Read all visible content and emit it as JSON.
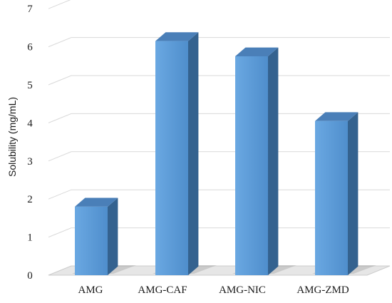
{
  "chart_data": {
    "type": "bar",
    "style": "3d-column",
    "categories": [
      "AMG",
      "AMG-CAF",
      "AMG-NIC",
      "AMG-ZMD"
    ],
    "values": [
      1.8,
      6.15,
      5.75,
      4.05
    ],
    "ylabel": "Solubility (mg/mL)",
    "xlabel": "",
    "ylim": [
      0,
      7
    ],
    "yticks": [
      0,
      1,
      2,
      3,
      4,
      5,
      6,
      7
    ],
    "grid": true,
    "legend": "none",
    "colors": {
      "bar_front": "#5a9bd8",
      "bar_top": "#4a7fb8",
      "bar_side": "#34628f",
      "floor": "#e6e6e6",
      "grid": "#d9d9d9"
    }
  }
}
